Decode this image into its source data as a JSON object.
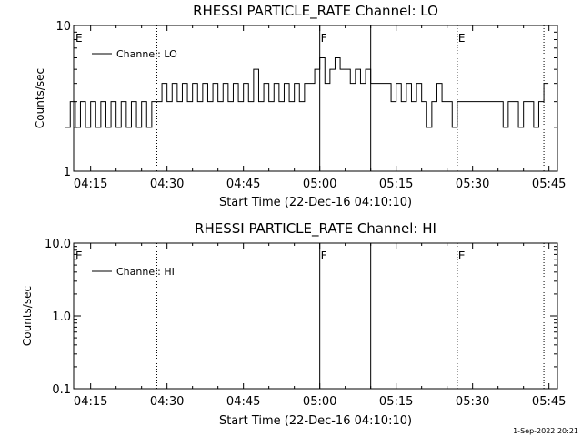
{
  "footer": {
    "timestamp": "1-Sep-2022 20:21"
  },
  "chart_data": [
    {
      "type": "line",
      "title": "RHESSI PARTICLE_RATE Channel: LO",
      "xlabel": "Start Time (22-Dec-16 04:10:10)",
      "ylabel": "Counts/sec",
      "y_scale": "log",
      "ylim": [
        1,
        10
      ],
      "y_ticks": [
        "1",
        "10"
      ],
      "x_ticks": [
        "04:15",
        "04:30",
        "04:45",
        "05:00",
        "05:15",
        "05:30",
        "05:45"
      ],
      "legend": {
        "label": "Channel: LO",
        "placement": "top-left"
      },
      "markers": [
        {
          "time": "04:28",
          "style": "dotted",
          "label": ""
        },
        {
          "time": "05:00",
          "style": "solid",
          "label": "F"
        },
        {
          "time": "05:10",
          "style": "solid",
          "label": ""
        },
        {
          "time": "05:27",
          "style": "dotted",
          "label": "E"
        },
        {
          "time": "05:44",
          "style": "dotted",
          "label": ""
        },
        {
          "time": "04:10",
          "style": "edge",
          "label": "E"
        }
      ],
      "series": [
        {
          "values_note": "",
          "x": [
            "04:10",
            "04:11",
            "04:12",
            "04:13",
            "04:14",
            "04:15",
            "04:16",
            "04:17",
            "04:18",
            "04:19",
            "04:20",
            "04:21",
            "04:22",
            "04:23",
            "04:24",
            "04:25",
            "04:26",
            "04:27",
            "04:28",
            "04:29",
            "04:30",
            "04:31",
            "04:32",
            "04:33",
            "04:34",
            "04:35",
            "04:36",
            "04:37",
            "04:38",
            "04:39",
            "04:40",
            "04:41",
            "04:42",
            "04:43",
            "04:44",
            "04:45",
            "04:46",
            "04:47",
            "04:48",
            "04:49",
            "04:50",
            "04:51",
            "04:52",
            "04:53",
            "04:54",
            "04:55",
            "04:56",
            "04:57",
            "04:58",
            "04:59",
            "05:00",
            "05:01",
            "05:02",
            "05:03",
            "05:04",
            "05:05",
            "05:06",
            "05:07",
            "05:08",
            "05:09",
            "05:10",
            "05:11",
            "05:12",
            "05:13",
            "05:14",
            "05:15",
            "05:16",
            "05:17",
            "05:18",
            "05:19",
            "05:20",
            "05:21",
            "05:22",
            "05:23",
            "05:24",
            "05:25",
            "05:26",
            "05:27",
            "05:28",
            "05:29",
            "05:30",
            "05:31",
            "05:32",
            "05:33",
            "05:34",
            "05:35",
            "05:36",
            "05:37",
            "05:38",
            "05:39",
            "05:40",
            "05:41",
            "05:42",
            "05:43",
            "05:44"
          ],
          "y": [
            2,
            3,
            2,
            3,
            2,
            3,
            2,
            3,
            2,
            3,
            2,
            3,
            2,
            3,
            2,
            3,
            2,
            3,
            3,
            4,
            3,
            4,
            3,
            4,
            3,
            4,
            3,
            4,
            3,
            4,
            3,
            4,
            3,
            4,
            3,
            4,
            3,
            5,
            3,
            4,
            3,
            4,
            3,
            4,
            3,
            4,
            3,
            4,
            4,
            5,
            6,
            4,
            5,
            6,
            5,
            5,
            4,
            5,
            4,
            5,
            4,
            4,
            4,
            4,
            3,
            4,
            3,
            4,
            3,
            4,
            3,
            2,
            3,
            4,
            3,
            3,
            2,
            3,
            3,
            3,
            3,
            3,
            3,
            3,
            3,
            3,
            2,
            3,
            3,
            2,
            3,
            3,
            2,
            3,
            4
          ]
        }
      ]
    },
    {
      "type": "line",
      "title": "RHESSI PARTICLE_RATE Channel: HI",
      "xlabel": "Start Time (22-Dec-16 04:10:10)",
      "ylabel": "Counts/sec",
      "y_scale": "log",
      "ylim": [
        0.1,
        10
      ],
      "y_ticks": [
        "0.1",
        "1.0",
        "10.0"
      ],
      "x_ticks": [
        "04:15",
        "04:30",
        "04:45",
        "05:00",
        "05:15",
        "05:30",
        "05:45"
      ],
      "legend": {
        "label": "Channel: HI",
        "placement": "top-left"
      },
      "markers": [
        {
          "time": "04:28",
          "style": "dotted",
          "label": ""
        },
        {
          "time": "05:00",
          "style": "solid",
          "label": "F"
        },
        {
          "time": "05:10",
          "style": "solid",
          "label": ""
        },
        {
          "time": "05:27",
          "style": "dotted",
          "label": "E"
        },
        {
          "time": "05:44",
          "style": "dotted",
          "label": ""
        },
        {
          "time": "04:10",
          "style": "edge",
          "label": "E"
        }
      ],
      "series": [
        {
          "x": [],
          "y": []
        }
      ]
    }
  ]
}
